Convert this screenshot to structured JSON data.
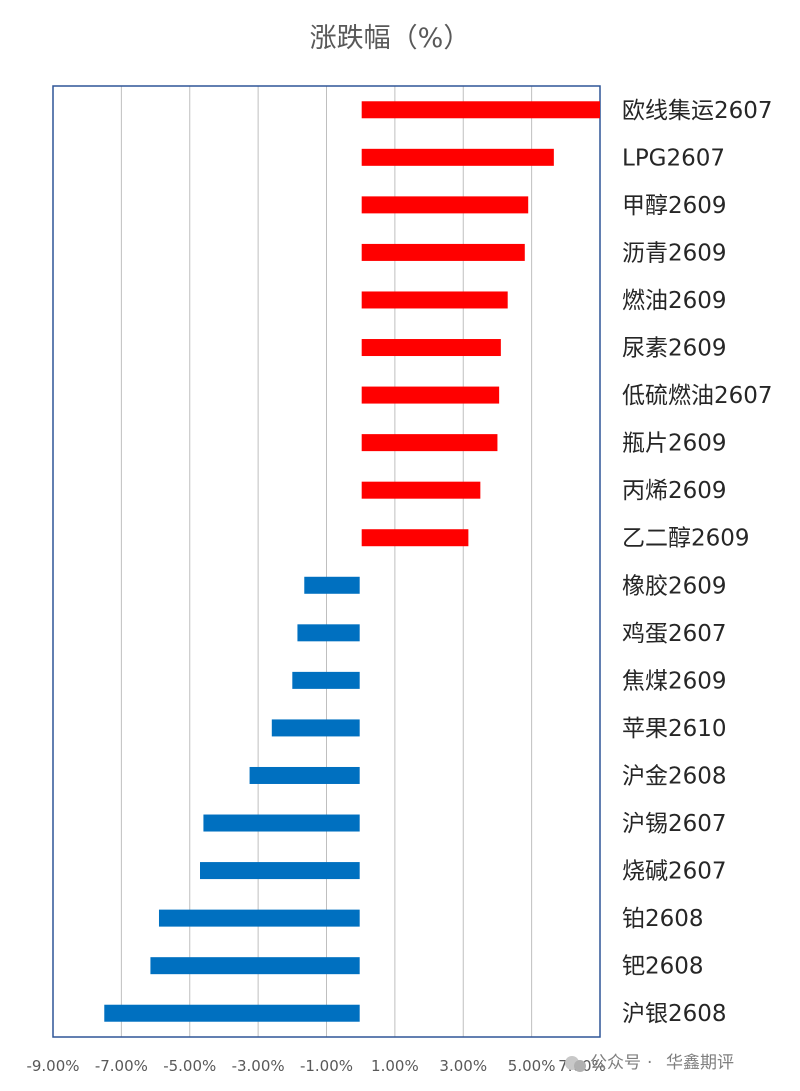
{
  "chart_data": {
    "type": "bar",
    "orientation": "horizontal",
    "title": "涨跌幅（%）",
    "xlabel": "",
    "ylabel": "",
    "xlim": [
      -9,
      7
    ],
    "x_ticks": [
      "-9.00%",
      "-7.00%",
      "-5.00%",
      "-3.00%",
      "-1.00%",
      "1.00%",
      "3.00%",
      "5.00%",
      "7.00%"
    ],
    "grid": "vertical",
    "categories": [
      "欧线集运2607",
      "LPG2607",
      "甲醇2609",
      "沥青2609",
      "燃油2609",
      "尿素2609",
      "低硫燃油2607",
      "瓶片2609",
      "丙烯2609",
      "乙二醇2609",
      "橡胶2609",
      "鸡蛋2607",
      "焦煤2609",
      "苹果2610",
      "沪金2608",
      "沪锡2607",
      "烧碱2607",
      "铂2608",
      "钯2608",
      "沪银2608"
    ],
    "values": [
      7.0,
      5.65,
      4.9,
      4.8,
      4.3,
      4.1,
      4.05,
      4.0,
      3.5,
      3.15,
      -1.65,
      -1.85,
      -2.0,
      -2.6,
      -3.25,
      -4.6,
      -4.7,
      -5.9,
      -6.15,
      -7.5
    ],
    "colors": {
      "positive": "#ff0000",
      "negative": "#0070c0",
      "frame": "#2f5597",
      "grid": "#bfbfbf"
    }
  },
  "watermark": {
    "dot": "·",
    "account": "公众号",
    "name": "华鑫期评"
  }
}
